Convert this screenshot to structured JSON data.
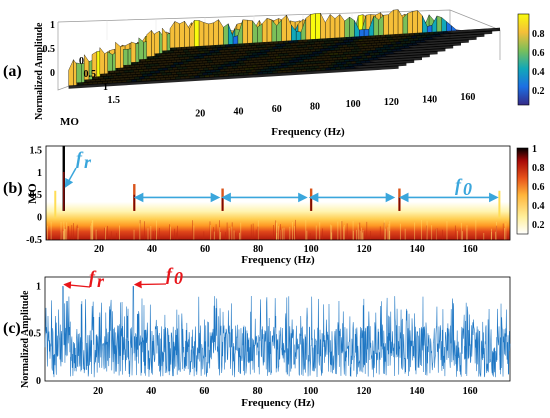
{
  "chart_data": [
    {
      "id": "a",
      "type": "area",
      "panel_label": "(a)",
      "xlabel": "Frequency (Hz)",
      "ylabel": "Normalized Amplitude",
      "depth_label": "MO",
      "x_ticks": [
        20,
        40,
        60,
        80,
        100,
        120,
        140,
        160
      ],
      "depth_ticks": [
        "0",
        "0.5",
        "1",
        "1.5"
      ],
      "z_ticks": [
        "0",
        "0.5",
        "1"
      ],
      "colorbar_ticks": [
        "0.2",
        "0.4",
        "0.6",
        "0.8"
      ],
      "xlim": [
        0,
        170
      ],
      "cutoff_hz": 140,
      "slice_boundaries_hz": [
        33.3,
        66.6,
        100,
        133.3
      ],
      "colormap": [
        "#352a87",
        "#1c6fe3",
        "#12a8b8",
        "#7abf5a",
        "#f5bf39",
        "#f9fb0e"
      ]
    },
    {
      "id": "b",
      "type": "heatmap",
      "panel_label": "(b)",
      "xlabel": "Frequency (Hz)",
      "ylabel": "MO",
      "x_ticks": [
        20,
        40,
        60,
        80,
        100,
        120,
        140,
        160
      ],
      "y_ticks": [
        "1.5",
        "1",
        "0.5",
        "0",
        "-0.5"
      ],
      "colorbar_ticks": [
        "1",
        "0.8",
        "0.6",
        "0.4",
        "0.2"
      ],
      "xlim": [
        0,
        175
      ],
      "ylim": [
        -0.5,
        1.6
      ],
      "fr_hz": 6.7,
      "f0_hz": 33.3,
      "spikes_hz": [
        6.7,
        33.3,
        66.6,
        100,
        133.3
      ],
      "arrow_spans_hz": [
        [
          36,
          65
        ],
        [
          69,
          98
        ],
        [
          102,
          131
        ],
        [
          136,
          170
        ]
      ],
      "annotations": {
        "fr": "f",
        "fr_sub": "r",
        "f0": "f",
        "f0_sub": "0"
      },
      "annotation_color": "#3aa6dc",
      "colormap": [
        "#ffffff",
        "#ffef9a",
        "#ffb63c",
        "#e8531a",
        "#a80a08",
        "#000000"
      ]
    },
    {
      "id": "c",
      "type": "line",
      "panel_label": "(c)",
      "xlabel": "Frequency (Hz)",
      "ylabel": "Normalized Amplitude",
      "x_ticks": [
        20,
        40,
        60,
        80,
        100,
        120,
        140,
        160
      ],
      "y_ticks": [
        "1",
        "0.5",
        "0"
      ],
      "xlim": [
        0,
        175
      ],
      "ylim": [
        0,
        1.1
      ],
      "fr_hz": 6.7,
      "f0_hz": 33.3,
      "annotations": {
        "fr": "f",
        "fr_sub": "r",
        "f0": "f",
        "f0_sub": "0"
      },
      "annotation_color": "#e8161b",
      "series_color": "#1f77c4"
    }
  ]
}
